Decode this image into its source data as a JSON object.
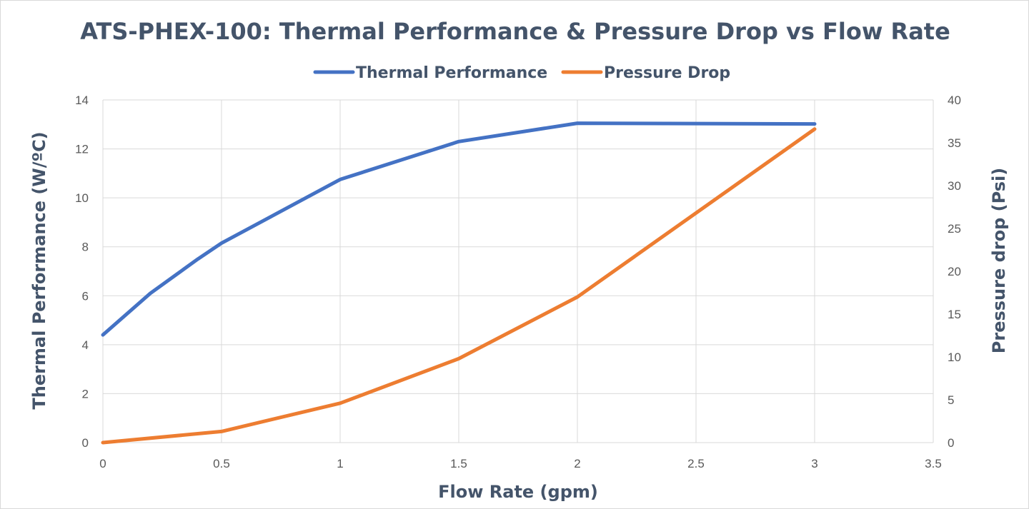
{
  "chart_data": {
    "type": "line",
    "title": "ATS-PHEX-100: Thermal Performance & Pressure Drop vs Flow Rate",
    "xlabel": "Flow Rate (gpm)",
    "ylabel": "Thermal Performance (W/ºC)",
    "y2label": "Pressure drop (Psi)",
    "xlim": [
      0,
      3.5
    ],
    "ylim": [
      0,
      14
    ],
    "y2lim": [
      0,
      40
    ],
    "x_ticks": [
      "0",
      "0.5",
      "1",
      "1.5",
      "2",
      "2.5",
      "3",
      "3.5"
    ],
    "y_ticks": [
      "0",
      "2",
      "4",
      "6",
      "8",
      "10",
      "12",
      "14"
    ],
    "y2_ticks": [
      "0",
      "5",
      "10",
      "15",
      "20",
      "25",
      "30",
      "35",
      "40"
    ],
    "grid": true,
    "legend_position": "top",
    "series": [
      {
        "name": "Thermal Performance",
        "axis": "left",
        "color": "#4472c4",
        "x": [
          0,
          0.2,
          0.4,
          0.5,
          1,
          1.5,
          2,
          3
        ],
        "values": [
          4.4,
          6.1,
          7.5,
          8.15,
          10.75,
          12.3,
          13.05,
          13.02
        ]
      },
      {
        "name": "Pressure Drop",
        "axis": "right",
        "color": "#ed7d31",
        "x": [
          0,
          0.5,
          1,
          1.5,
          2,
          3
        ],
        "values": [
          0,
          1.3,
          4.6,
          9.8,
          17,
          36.6
        ]
      }
    ]
  }
}
